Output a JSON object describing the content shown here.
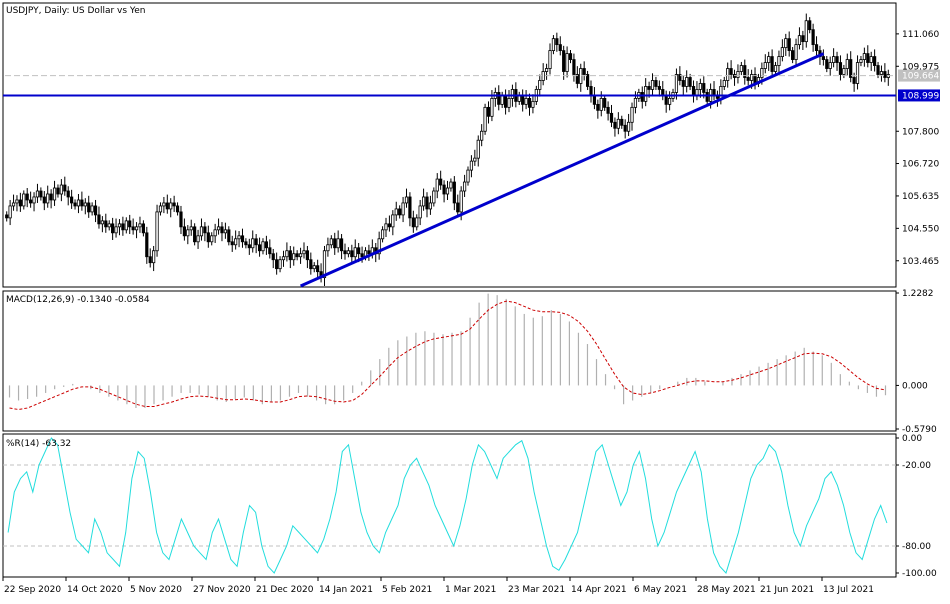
{
  "colors": {
    "frame": "#000000",
    "candle": "#000000",
    "trendline": "#0000cc",
    "hline": "#0000cc",
    "bid_line": "#c0c0c0",
    "macd_hist": "#b0b0b0",
    "macd_signal": "#cc0000",
    "wpr_line": "#22dddd",
    "level_line": "#c0c0c0",
    "label_bg_blue": "#0000cc",
    "label_bg_gray": "#c0c0c0"
  },
  "chart_data": [
    {
      "type": "candlestick",
      "title": "USDJPY, Daily:  US Dollar vs Yen",
      "ylim": [
        102.62,
        112.06
      ],
      "y_ticks": [
        "111.060",
        "109.975",
        "107.800",
        "106.720",
        "105.635",
        "104.550",
        "103.465"
      ],
      "x_tick_labels": [
        "22 Sep 2020",
        "14 Oct 2020",
        "5 Nov 2020",
        "27 Nov 2020",
        "21 Dec 2020",
        "14 Jan 2021",
        "5 Feb 2021",
        "1 Mar 2021",
        "23 Mar 2021",
        "14 Apr 2021",
        "6 May 2021",
        "28 May 2021",
        "21 Jun 2021",
        "13 Jul 2021"
      ],
      "current_price": "109.664",
      "horizontal_line": "108.999",
      "trendline": {
        "start": {
          "date": "4 Jan 2021",
          "price": 102.62
        },
        "end": {
          "date": "6 Jul 2021",
          "price": 110.4
        }
      },
      "closes": [
        104.9,
        105.3,
        105.4,
        105.5,
        105.3,
        105.7,
        105.5,
        105.4,
        105.6,
        105.8,
        105.6,
        105.4,
        105.7,
        105.5,
        105.9,
        105.7,
        106.0,
        105.8,
        105.6,
        105.4,
        105.3,
        105.5,
        105.3,
        105.4,
        105.1,
        105.3,
        105.0,
        104.7,
        104.8,
        104.6,
        104.7,
        104.4,
        104.6,
        104.7,
        104.5,
        104.8,
        104.6,
        104.5,
        104.6,
        104.7,
        104.4,
        103.6,
        103.4,
        103.8,
        105.1,
        105.3,
        105.4,
        105.2,
        105.4,
        105.3,
        105.1,
        104.6,
        104.3,
        104.5,
        104.6,
        104.1,
        104.3,
        104.6,
        104.4,
        104.1,
        104.3,
        104.5,
        104.6,
        104.4,
        104.5,
        104.1,
        104.0,
        104.2,
        104.3,
        104.1,
        104.0,
        103.9,
        104.2,
        104.0,
        103.8,
        104.1,
        103.9,
        103.7,
        103.5,
        103.2,
        103.5,
        103.6,
        103.8,
        103.5,
        103.7,
        103.6,
        103.7,
        103.8,
        103.5,
        103.2,
        103.3,
        103.1,
        102.9,
        103.8,
        104.0,
        104.2,
        103.9,
        104.2,
        103.8,
        103.7,
        103.8,
        103.6,
        103.9,
        103.7,
        103.6,
        103.8,
        103.7,
        103.9,
        103.7,
        104.2,
        104.5,
        104.7,
        104.6,
        105.0,
        105.2,
        105.0,
        105.4,
        105.6,
        104.9,
        104.6,
        104.9,
        105.3,
        105.6,
        105.2,
        105.4,
        105.8,
        106.2,
        106.0,
        105.7,
        105.9,
        106.1,
        105.4,
        105.1,
        105.8,
        106.1,
        106.5,
        106.8,
        106.9,
        107.5,
        107.8,
        108.6,
        108.3,
        108.9,
        109.1,
        108.7,
        109.0,
        108.6,
        108.9,
        109.2,
        108.8,
        109.0,
        108.7,
        108.9,
        108.6,
        108.8,
        109.2,
        109.5,
        109.8,
        109.9,
        110.5,
        110.9,
        110.7,
        110.5,
        109.8,
        110.4,
        110.2,
        109.7,
        109.4,
        109.9,
        109.7,
        109.3,
        109.0,
        108.7,
        108.5,
        108.9,
        108.6,
        108.4,
        108.1,
        107.9,
        108.2,
        108.0,
        107.8,
        108.1,
        108.6,
        108.9,
        109.1,
        108.8,
        109.3,
        109.2,
        109.5,
        109.3,
        109.2,
        109.0,
        108.7,
        108.9,
        109.1,
        109.7,
        109.5,
        109.3,
        109.6,
        109.3,
        109.0,
        109.2,
        109.4,
        109.1,
        108.8,
        109.2,
        109.0,
        108.9,
        109.3,
        109.5,
        109.9,
        109.7,
        109.6,
        109.8,
        110.0,
        109.6,
        109.5,
        109.7,
        109.4,
        109.6,
        109.9,
        110.1,
        110.3,
        109.8,
        110.0,
        110.3,
        110.6,
        110.9,
        110.5,
        110.2,
        110.7,
        111.0,
        110.8,
        111.5,
        111.2,
        110.7,
        110.5,
        110.3,
        110.2,
        109.9,
        110.1,
        110.3,
        110.1,
        109.7,
        109.9,
        110.2,
        109.6,
        109.4,
        110.1,
        110.2,
        110.4,
        110.1,
        110.3,
        110.0,
        109.7,
        109.8,
        109.6,
        109.7
      ],
      "candle_width_note": ""
    },
    {
      "type": "bar+line",
      "title": "MACD(12,26,9) -0.1340 -0.0584",
      "ylim": [
        -0.579,
        1.2282
      ],
      "y_ticks": [
        "1.2282",
        "0.000",
        "-0.5790"
      ],
      "series": [
        {
          "name": "MACD histogram",
          "kind": "bar",
          "values": [
            -0.16,
            -0.2,
            -0.18,
            -0.15,
            -0.1,
            -0.05,
            -0.02,
            0.02,
            0.0,
            -0.05,
            -0.1,
            -0.15,
            -0.2,
            -0.25,
            -0.3,
            -0.3,
            -0.25,
            -0.2,
            -0.15,
            -0.1,
            -0.1,
            -0.12,
            -0.15,
            -0.2,
            -0.22,
            -0.18,
            -0.16,
            -0.2,
            -0.25,
            -0.22,
            -0.2,
            -0.15,
            -0.1,
            -0.15,
            -0.2,
            -0.25,
            -0.25,
            -0.2,
            -0.1,
            0.05,
            0.2,
            0.35,
            0.5,
            0.6,
            0.65,
            0.7,
            0.72,
            0.7,
            0.68,
            0.7,
            0.72,
            0.9,
            1.1,
            1.22,
            1.2,
            1.15,
            1.05,
            0.95,
            0.9,
            0.92,
            1.0,
            0.95,
            0.85,
            0.7,
            0.55,
            0.35,
            0.15,
            -0.05,
            -0.25,
            -0.2,
            -0.15,
            -0.1,
            -0.05,
            0.0,
            0.05,
            0.1,
            0.1,
            0.05,
            0.0,
            0.05,
            0.1,
            0.15,
            0.2,
            0.25,
            0.3,
            0.35,
            0.4,
            0.45,
            0.5,
            0.45,
            0.4,
            0.3,
            0.15,
            0.05,
            -0.05,
            -0.1,
            -0.15,
            -0.13
          ]
        },
        {
          "name": "Signal",
          "kind": "line",
          "values": [
            -0.3,
            -0.32,
            -0.3,
            -0.25,
            -0.2,
            -0.15,
            -0.1,
            -0.05,
            -0.02,
            -0.02,
            -0.05,
            -0.1,
            -0.15,
            -0.2,
            -0.25,
            -0.28,
            -0.28,
            -0.25,
            -0.22,
            -0.18,
            -0.15,
            -0.14,
            -0.15,
            -0.17,
            -0.19,
            -0.19,
            -0.18,
            -0.19,
            -0.21,
            -0.22,
            -0.22,
            -0.19,
            -0.15,
            -0.14,
            -0.15,
            -0.18,
            -0.21,
            -0.22,
            -0.2,
            -0.12,
            0.0,
            0.12,
            0.25,
            0.37,
            0.45,
            0.52,
            0.58,
            0.62,
            0.64,
            0.66,
            0.68,
            0.75,
            0.88,
            1.0,
            1.08,
            1.12,
            1.1,
            1.05,
            1.0,
            0.98,
            0.98,
            0.97,
            0.93,
            0.85,
            0.72,
            0.55,
            0.35,
            0.15,
            -0.02,
            -0.1,
            -0.12,
            -0.1,
            -0.07,
            -0.03,
            0.0,
            0.04,
            0.06,
            0.06,
            0.05,
            0.05,
            0.07,
            0.1,
            0.14,
            0.18,
            0.22,
            0.27,
            0.32,
            0.37,
            0.42,
            0.43,
            0.42,
            0.38,
            0.3,
            0.2,
            0.1,
            0.02,
            -0.04,
            -0.06
          ]
        }
      ]
    },
    {
      "type": "line",
      "title": "%R(14) -63.32",
      "ylim": [
        -100,
        0
      ],
      "y_ticks": [
        "0.00",
        "-20.00",
        "-80.00",
        "-100.00"
      ],
      "levels": [
        -20,
        -80
      ],
      "series": [
        {
          "name": "%R",
          "values": [
            -70,
            -40,
            -30,
            -25,
            -40,
            -20,
            -10,
            0,
            -5,
            -30,
            -55,
            -75,
            -80,
            -85,
            -60,
            -70,
            -85,
            -90,
            -95,
            -70,
            -30,
            -10,
            -15,
            -40,
            -70,
            -85,
            -90,
            -75,
            -60,
            -70,
            -80,
            -85,
            -90,
            -70,
            -60,
            -75,
            -90,
            -95,
            -70,
            -50,
            -55,
            -80,
            -95,
            -100,
            -90,
            -80,
            -65,
            -70,
            -75,
            -80,
            -85,
            -75,
            -60,
            -40,
            -10,
            -5,
            -30,
            -55,
            -70,
            -80,
            -85,
            -70,
            -60,
            -50,
            -30,
            -20,
            -15,
            -25,
            -35,
            -50,
            -60,
            -70,
            -80,
            -65,
            -45,
            -20,
            -5,
            -10,
            -20,
            -30,
            -15,
            -10,
            -5,
            -2,
            -15,
            -40,
            -60,
            -80,
            -95,
            -98,
            -90,
            -80,
            -70,
            -50,
            -30,
            -10,
            -5,
            -20,
            -35,
            -50,
            -40,
            -20,
            -10,
            -30,
            -60,
            -80,
            -70,
            -55,
            -40,
            -30,
            -20,
            -10,
            -25,
            -60,
            -85,
            -95,
            -100,
            -85,
            -70,
            -50,
            -30,
            -20,
            -15,
            -5,
            -10,
            -25,
            -50,
            -70,
            -80,
            -65,
            -55,
            -45,
            -30,
            -25,
            -35,
            -50,
            -70,
            -85,
            -90,
            -75,
            -60,
            -50,
            -63
          ]
        }
      ]
    }
  ]
}
